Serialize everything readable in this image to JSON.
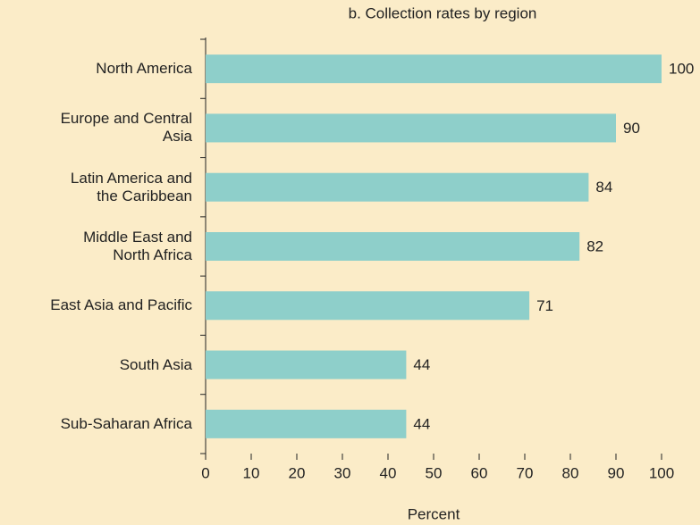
{
  "chart_data": {
    "type": "bar",
    "orientation": "horizontal",
    "title": "b. Collection rates by region",
    "categories": [
      "North America",
      "Europe and Central\nAsia",
      "Latin America and\nthe Caribbean",
      "Middle East and\nNorth Africa",
      "East Asia and Pacific",
      "South Asia",
      "Sub-Saharan Africa"
    ],
    "values": [
      100,
      90,
      84,
      82,
      71,
      44,
      44
    ],
    "color": "#8ecfca",
    "xlabel": "Percent",
    "xlim": [
      0,
      100
    ],
    "xticks": [
      0,
      10,
      20,
      30,
      40,
      50,
      60,
      70,
      80,
      90,
      100
    ],
    "grid": false
  }
}
